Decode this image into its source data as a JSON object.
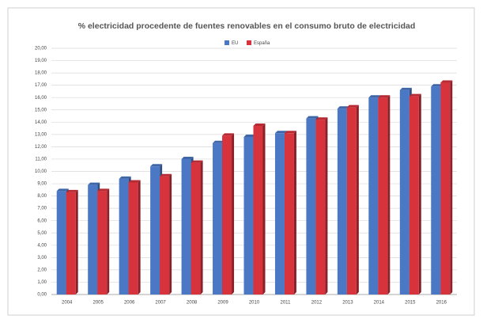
{
  "chart_data": {
    "type": "bar3d",
    "title": "% electricidad procedente de fuentes renovables en el consumo bruto de electricidad",
    "categories": [
      "2004",
      "2005",
      "2006",
      "2007",
      "2008",
      "2009",
      "2010",
      "2011",
      "2012",
      "2013",
      "2014",
      "2015",
      "2016"
    ],
    "series": [
      {
        "name": "EU",
        "color": "#4a78c4",
        "values": [
          8.4,
          8.9,
          9.4,
          10.4,
          11.0,
          12.3,
          12.8,
          13.1,
          14.3,
          15.1,
          16.0,
          16.6,
          16.9
        ]
      },
      {
        "name": "España",
        "color": "#d6333d",
        "values": [
          8.3,
          8.4,
          9.1,
          9.6,
          10.7,
          12.9,
          13.7,
          13.1,
          14.2,
          15.2,
          16.0,
          16.1,
          17.2
        ]
      }
    ],
    "ylim": [
      0,
      20
    ],
    "yticks": [
      {
        "value": 0,
        "label": "0,00"
      },
      {
        "value": 1,
        "label": "1,00"
      },
      {
        "value": 2,
        "label": "2,00"
      },
      {
        "value": 3,
        "label": "3,00"
      },
      {
        "value": 4,
        "label": "4,00"
      },
      {
        "value": 5,
        "label": "5,00"
      },
      {
        "value": 6,
        "label": "6,00"
      },
      {
        "value": 7,
        "label": "7,00"
      },
      {
        "value": 8,
        "label": "8,00"
      },
      {
        "value": 9,
        "label": "9,00"
      },
      {
        "value": 10,
        "label": "10,00"
      },
      {
        "value": 11,
        "label": "11,00"
      },
      {
        "value": 12,
        "label": "12,00"
      },
      {
        "value": 13,
        "label": "13,00"
      },
      {
        "value": 14,
        "label": "14,00"
      },
      {
        "value": 15,
        "label": "15,00"
      },
      {
        "value": 16,
        "label": "16,00"
      },
      {
        "value": 17,
        "label": "17,00"
      },
      {
        "value": 18,
        "label": "18,00"
      },
      {
        "value": 19,
        "label": "19,00"
      },
      {
        "value": 20,
        "label": "20,00"
      }
    ],
    "grid": true,
    "legend": "top"
  }
}
